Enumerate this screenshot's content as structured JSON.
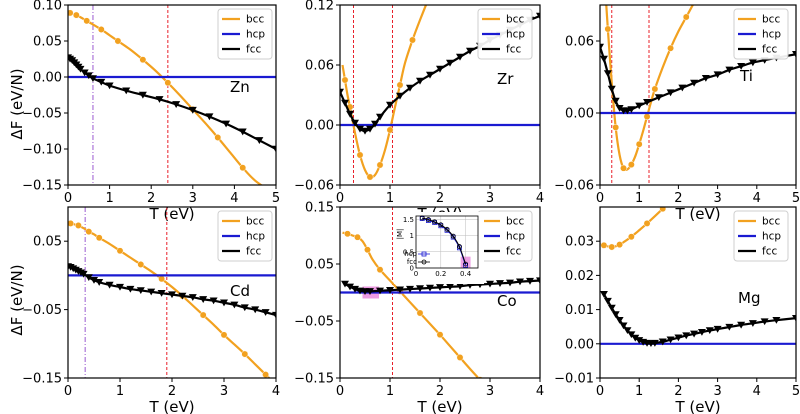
{
  "ylabel": "ΔF (eV/N)",
  "colors": {
    "bcc": "#f2a11f",
    "hcp": "#1a1ad1",
    "fcc": "#000000",
    "marker": "#f2a11f",
    "vline": "#e8202a",
    "vline_dashdot": "#9b59d0",
    "highlight": "#e67ad8"
  },
  "chart_data": [
    {
      "type": "line",
      "element": "Zn",
      "xlabel": "T (eV)",
      "xlim": [
        0,
        5
      ],
      "ylim": [
        -0.15,
        0.1
      ],
      "xticks": [
        0,
        1,
        2,
        3,
        4,
        5
      ],
      "xtick_labels": [
        "0",
        "1",
        "2",
        "3",
        "4",
        "5"
      ],
      "yticks": [
        -0.15,
        -0.1,
        -0.05,
        0.0,
        0.05,
        0.1
      ],
      "ytick_labels": [
        "−0.15",
        "−0.10",
        "−0.05",
        "0.00",
        "0.05",
        "0.10"
      ],
      "legend": [
        "bcc",
        "hcp",
        "fcc"
      ],
      "vlines": [
        0.6,
        2.4
      ],
      "vline_styles": [
        "dashdot",
        "dashed"
      ],
      "series": [
        {
          "name": "bcc",
          "x": [
            0,
            0.05,
            0.1,
            0.2,
            0.3,
            0.45,
            0.6,
            0.8,
            1.0,
            1.2,
            1.5,
            1.8,
            2.1,
            2.4,
            2.7,
            3.0,
            3.3,
            3.6,
            3.9,
            4.2,
            4.5,
            4.9
          ],
          "y": [
            0.09,
            0.089,
            0.088,
            0.086,
            0.083,
            0.078,
            0.073,
            0.066,
            0.058,
            0.05,
            0.038,
            0.024,
            0.009,
            -0.008,
            -0.026,
            -0.045,
            -0.064,
            -0.084,
            -0.105,
            -0.126,
            -0.144,
            -0.16
          ]
        },
        {
          "name": "hcp",
          "x": [
            0,
            5
          ],
          "y": [
            0,
            0
          ]
        },
        {
          "name": "fcc",
          "x": [
            0,
            0.05,
            0.1,
            0.15,
            0.2,
            0.25,
            0.3,
            0.4,
            0.5,
            0.6,
            0.8,
            1.0,
            1.4,
            1.8,
            2.2,
            2.6,
            3.0,
            3.4,
            3.8,
            4.2,
            4.6,
            5.0
          ],
          "y": [
            0.027,
            0.025,
            0.023,
            0.02,
            0.017,
            0.014,
            0.011,
            0.006,
            0.002,
            -0.002,
            -0.007,
            -0.012,
            -0.019,
            -0.025,
            -0.031,
            -0.038,
            -0.046,
            -0.055,
            -0.065,
            -0.076,
            -0.088,
            -0.1
          ]
        }
      ]
    },
    {
      "type": "line",
      "element": "Zr",
      "xlabel": "T (eV)",
      "xlim": [
        0,
        4
      ],
      "ylim": [
        -0.06,
        0.12
      ],
      "xticks": [
        0,
        1,
        2,
        3,
        4
      ],
      "xtick_labels": [
        "0",
        "1",
        "2",
        "3",
        "4"
      ],
      "yticks": [
        -0.06,
        0.0,
        0.06,
        0.12
      ],
      "ytick_labels": [
        "−0.06",
        "0.00",
        "0.06",
        "0.12"
      ],
      "legend": [
        "bcc",
        "hcp",
        "fcc"
      ],
      "vlines": [
        0.27,
        1.05
      ],
      "vline_styles": [
        "dashed",
        "dashed"
      ],
      "series": [
        {
          "name": "bcc",
          "x": [
            0.05,
            0.1,
            0.15,
            0.2,
            0.3,
            0.4,
            0.5,
            0.6,
            0.7,
            0.8,
            0.9,
            1.0,
            1.1,
            1.2,
            1.3,
            1.45,
            1.6,
            1.8
          ],
          "y": [
            0.06,
            0.045,
            0.03,
            0.018,
            -0.008,
            -0.03,
            -0.045,
            -0.052,
            -0.05,
            -0.04,
            -0.025,
            -0.005,
            0.018,
            0.04,
            0.062,
            0.085,
            0.105,
            0.13
          ]
        },
        {
          "name": "hcp",
          "x": [
            0,
            4
          ],
          "y": [
            0,
            0
          ]
        },
        {
          "name": "fcc",
          "x": [
            0,
            0.1,
            0.2,
            0.3,
            0.4,
            0.5,
            0.6,
            0.7,
            0.8,
            1.0,
            1.2,
            1.4,
            1.6,
            1.8,
            2.0,
            2.2,
            2.4,
            2.6,
            2.8,
            3.0,
            3.2,
            3.4,
            3.6,
            3.8,
            4.0
          ],
          "y": [
            0.033,
            0.022,
            0.011,
            0.002,
            -0.004,
            -0.006,
            -0.004,
            0.001,
            0.008,
            0.02,
            0.029,
            0.037,
            0.044,
            0.05,
            0.056,
            0.062,
            0.068,
            0.074,
            0.079,
            0.085,
            0.09,
            0.095,
            0.1,
            0.105,
            0.109
          ]
        }
      ]
    },
    {
      "type": "line",
      "element": "Ti",
      "xlabel": "T (eV)",
      "xlim": [
        0,
        5
      ],
      "ylim": [
        -0.06,
        0.09
      ],
      "xticks": [
        0,
        1,
        2,
        3,
        4,
        5
      ],
      "xtick_labels": [
        "0",
        "1",
        "2",
        "3",
        "4",
        "5"
      ],
      "yticks": [
        -0.06,
        0.0,
        0.06
      ],
      "ytick_labels": [
        "−0.06",
        "0.00",
        "0.06"
      ],
      "legend": [
        "bcc",
        "hcp",
        "fcc"
      ],
      "vlines": [
        0.3,
        1.25
      ],
      "vline_styles": [
        "dashed",
        "dashed"
      ],
      "series": [
        {
          "name": "bcc",
          "x": [
            0.15,
            0.2,
            0.3,
            0.4,
            0.5,
            0.6,
            0.7,
            0.8,
            0.9,
            1.0,
            1.1,
            1.2,
            1.3,
            1.4,
            1.6,
            1.8,
            2.0,
            2.2,
            2.4
          ],
          "y": [
            0.095,
            0.07,
            0.025,
            -0.012,
            -0.035,
            -0.046,
            -0.047,
            -0.043,
            -0.036,
            -0.026,
            -0.015,
            -0.003,
            0.009,
            0.02,
            0.038,
            0.054,
            0.068,
            0.08,
            0.092
          ]
        },
        {
          "name": "hcp",
          "x": [
            0,
            5
          ],
          "y": [
            0,
            0
          ]
        },
        {
          "name": "fcc",
          "x": [
            0,
            0.1,
            0.2,
            0.3,
            0.4,
            0.5,
            0.6,
            0.7,
            0.8,
            1.0,
            1.2,
            1.5,
            1.8,
            2.1,
            2.4,
            2.7,
            3.0,
            3.3,
            3.6,
            3.9,
            4.2,
            4.5,
            5.0
          ],
          "y": [
            0.055,
            0.045,
            0.033,
            0.02,
            0.01,
            0.004,
            0.002,
            0.002,
            0.003,
            0.006,
            0.009,
            0.013,
            0.017,
            0.021,
            0.025,
            0.029,
            0.032,
            0.036,
            0.039,
            0.042,
            0.044,
            0.046,
            0.049
          ]
        }
      ]
    },
    {
      "type": "line",
      "element": "Cd",
      "xlabel": "T (eV)",
      "xlim": [
        0,
        4
      ],
      "ylim": [
        -0.15,
        0.1
      ],
      "xticks": [
        0,
        1,
        2,
        3,
        4
      ],
      "xtick_labels": [
        "0",
        "1",
        "2",
        "3",
        "4"
      ],
      "yticks": [
        -0.15,
        -0.05,
        0.05
      ],
      "ytick_labels": [
        "−0.15",
        "−0.05",
        "0.05"
      ],
      "legend": [
        "bcc",
        "hcp",
        "fcc"
      ],
      "vlines": [
        0.33,
        1.9
      ],
      "vline_styles": [
        "dashdot",
        "dashed"
      ],
      "series": [
        {
          "name": "bcc",
          "x": [
            0,
            0.05,
            0.1,
            0.2,
            0.3,
            0.4,
            0.5,
            0.6,
            0.8,
            1.0,
            1.2,
            1.4,
            1.6,
            1.8,
            2.0,
            2.2,
            2.4,
            2.6,
            2.8,
            3.0,
            3.2,
            3.4,
            3.6,
            3.8,
            4.0
          ],
          "y": [
            0.077,
            0.076,
            0.075,
            0.073,
            0.069,
            0.064,
            0.06,
            0.055,
            0.046,
            0.036,
            0.026,
            0.016,
            0.006,
            -0.005,
            -0.017,
            -0.03,
            -0.044,
            -0.058,
            -0.072,
            -0.087,
            -0.101,
            -0.115,
            -0.13,
            -0.145,
            -0.16
          ]
        },
        {
          "name": "hcp",
          "x": [
            0,
            4
          ],
          "y": [
            0,
            0
          ]
        },
        {
          "name": "fcc",
          "x": [
            0,
            0.05,
            0.1,
            0.15,
            0.2,
            0.25,
            0.3,
            0.4,
            0.5,
            0.6,
            0.8,
            1.0,
            1.2,
            1.4,
            1.6,
            1.8,
            2.0,
            2.2,
            2.4,
            2.6,
            2.8,
            3.0,
            3.2,
            3.4,
            3.6,
            3.8,
            4.0
          ],
          "y": [
            0.013,
            0.012,
            0.01,
            0.008,
            0.006,
            0.004,
            0.002,
            -0.003,
            -0.007,
            -0.01,
            -0.014,
            -0.017,
            -0.02,
            -0.022,
            -0.024,
            -0.026,
            -0.028,
            -0.03,
            -0.032,
            -0.035,
            -0.037,
            -0.04,
            -0.043,
            -0.047,
            -0.05,
            -0.054,
            -0.058
          ]
        }
      ]
    },
    {
      "type": "line",
      "element": "Co",
      "xlabel": "T (eV)",
      "xlim": [
        0,
        4
      ],
      "ylim": [
        -0.15,
        0.15
      ],
      "xticks": [
        0,
        1,
        2,
        3,
        4
      ],
      "xtick_labels": [
        "0",
        "1",
        "2",
        "3",
        "4"
      ],
      "yticks": [
        -0.15,
        -0.05,
        0.05,
        0.15
      ],
      "ytick_labels": [
        "−0.15",
        "−0.05",
        "0.05",
        "0.15"
      ],
      "legend": [
        "bcc",
        "hcp",
        "fcc"
      ],
      "vlines": [
        1.05
      ],
      "vline_styles": [
        "dashed"
      ],
      "highlight_x": [
        0.45,
        0.78
      ],
      "series": [
        {
          "name": "bcc",
          "x": [
            0.05,
            0.15,
            0.25,
            0.35,
            0.45,
            0.55,
            0.65,
            0.8,
            1.0,
            1.2,
            1.4,
            1.6,
            1.8,
            2.0,
            2.2,
            2.4,
            2.6,
            2.8,
            3.0
          ],
          "y": [
            0.105,
            0.103,
            0.1,
            0.097,
            0.09,
            0.075,
            0.058,
            0.04,
            0.021,
            0.002,
            -0.017,
            -0.036,
            -0.055,
            -0.074,
            -0.094,
            -0.114,
            -0.134,
            -0.153,
            -0.17
          ]
        },
        {
          "name": "hcp",
          "x": [
            0,
            4
          ],
          "y": [
            0,
            0
          ]
        },
        {
          "name": "fcc",
          "x": [
            0.1,
            0.2,
            0.3,
            0.4,
            0.5,
            0.6,
            0.8,
            1.0,
            1.2,
            1.4,
            1.6,
            1.8,
            2.0,
            2.2,
            2.4,
            2.6,
            2.8,
            3.0,
            3.2,
            3.4,
            3.6,
            3.8,
            4.0
          ],
          "y": [
            0.015,
            0.01,
            0.006,
            0.003,
            0.002,
            0.002,
            0.003,
            0.004,
            0.005,
            0.006,
            0.007,
            0.008,
            0.009,
            0.01,
            0.011,
            0.013,
            0.014,
            0.015,
            0.016,
            0.017,
            0.019,
            0.02,
            0.021
          ]
        }
      ],
      "inset": {
        "ylabel": "|M|",
        "xlim": [
          0,
          0.5
        ],
        "ylim": [
          0,
          1.6
        ],
        "xticks": [
          0,
          0.2,
          0.4
        ],
        "xtick_labels": [
          "0",
          "0.2",
          "0.4"
        ],
        "yticks": [
          0,
          0.5,
          1.0,
          1.5
        ],
        "ytick_labels": [
          "0",
          "0.5",
          "1",
          "1.5"
        ],
        "series": [
          {
            "name": "hcp",
            "x": [
              0.05,
              0.1,
              0.15,
              0.2,
              0.25,
              0.3,
              0.35,
              0.4
            ],
            "y": [
              1.52,
              1.46,
              1.4,
              1.3,
              1.16,
              0.95,
              0.62,
              0.08
            ]
          },
          {
            "name": "fcc",
            "x": [
              0.05,
              0.1,
              0.15,
              0.2,
              0.25,
              0.3,
              0.35,
              0.4
            ],
            "y": [
              1.54,
              1.49,
              1.42,
              1.33,
              1.19,
              0.98,
              0.66,
              0.12
            ]
          }
        ]
      }
    },
    {
      "type": "line",
      "element": "Mg",
      "xlabel": "T (eV)",
      "xlim": [
        0,
        5
      ],
      "ylim": [
        -0.01,
        0.04
      ],
      "xticks": [
        0,
        1,
        2,
        3,
        4,
        5
      ],
      "xtick_labels": [
        "0",
        "1",
        "2",
        "3",
        "4",
        "5"
      ],
      "yticks": [
        -0.01,
        0.0,
        0.01,
        0.02,
        0.03
      ],
      "ytick_labels": [
        "−0.01",
        "0.00",
        "0.01",
        "0.02",
        "0.03"
      ],
      "legend": [
        "bcc",
        "hcp",
        "fcc"
      ],
      "vlines": [],
      "vline_styles": [],
      "series": [
        {
          "name": "bcc",
          "x": [
            0,
            0.1,
            0.2,
            0.3,
            0.4,
            0.5,
            0.6,
            0.8,
            1.0,
            1.2,
            1.4,
            1.6,
            1.8
          ],
          "y": [
            0.029,
            0.0288,
            0.0285,
            0.0283,
            0.0285,
            0.029,
            0.0297,
            0.0313,
            0.0332,
            0.0352,
            0.0373,
            0.0395,
            0.0418
          ]
        },
        {
          "name": "hcp",
          "x": [
            0,
            5
          ],
          "y": [
            0,
            0
          ]
        },
        {
          "name": "fcc",
          "x": [
            0.1,
            0.2,
            0.3,
            0.4,
            0.5,
            0.6,
            0.7,
            0.8,
            0.9,
            1.0,
            1.1,
            1.2,
            1.3,
            1.4,
            1.6,
            1.8,
            2.0,
            2.2,
            2.4,
            2.6,
            2.8,
            3.0,
            3.3,
            3.6,
            3.9,
            4.2,
            4.5,
            5.0
          ],
          "y": [
            0.0145,
            0.0125,
            0.0105,
            0.0086,
            0.0069,
            0.0053,
            0.0039,
            0.0027,
            0.0017,
            0.001,
            0.0005,
            0.0002,
            0.0001,
            0.0002,
            0.0006,
            0.0012,
            0.0018,
            0.0024,
            0.0029,
            0.0034,
            0.0039,
            0.0043,
            0.0049,
            0.0055,
            0.006,
            0.0065,
            0.0069,
            0.0075
          ]
        }
      ]
    }
  ]
}
